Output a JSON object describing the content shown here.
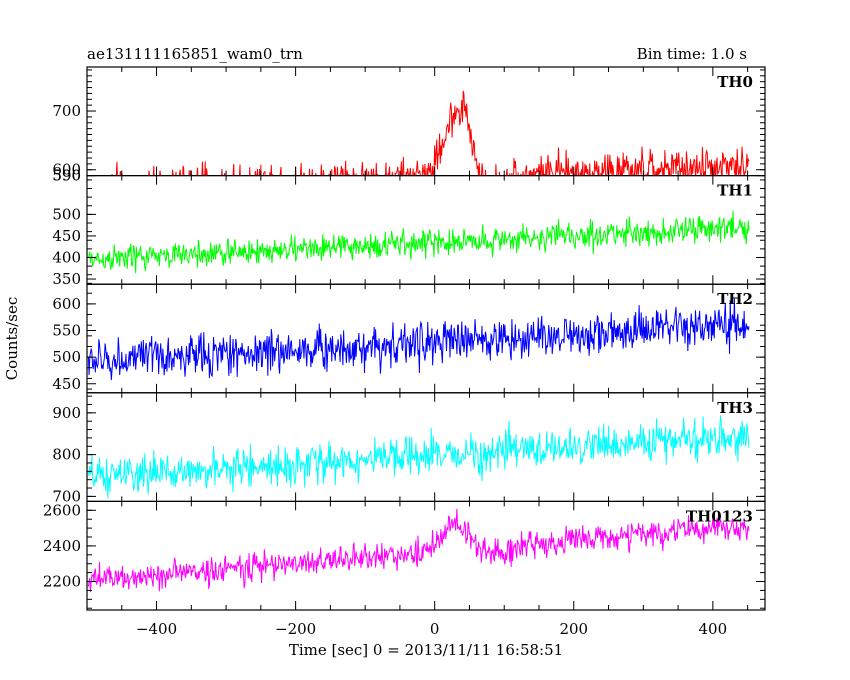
{
  "chart_data": {
    "type": "line",
    "title_left": "ae131111165851_wam0_trn",
    "title_right": "Bin time: 1.0 s",
    "xlabel": "Time [sec] 0 = 2013/11/11 16:58:51",
    "ylabel": "Counts/sec",
    "xlim": [
      -500,
      475
    ],
    "xticks": [
      -400,
      -200,
      0,
      200,
      400
    ],
    "x_start": -498,
    "x_end": 452,
    "x_step": 1,
    "panels": [
      {
        "name": "TH0",
        "color": "#ff0000",
        "ylim": [
          590,
          775
        ],
        "yticks": [
          700,
          600,
          590
        ],
        "base_start": 572,
        "base_end": 605,
        "noise": 22,
        "burst": [
          {
            "center": 32,
            "width": 18,
            "amp": 110
          },
          {
            "center": 45,
            "width": 5,
            "amp": 35
          }
        ],
        "dip": {
          "center": 80,
          "width": 25,
          "amp": -20
        }
      },
      {
        "name": "TH1",
        "color": "#00ff00",
        "ylim": [
          338,
          590
        ],
        "yticks": [
          500,
          450,
          400,
          350,
          590
        ],
        "base_start": 395,
        "base_end": 470,
        "noise": 22,
        "burst": [],
        "dip": null
      },
      {
        "name": "TH2",
        "color": "#0000ff",
        "ylim": [
          433,
          637
        ],
        "yticks": [
          600,
          550,
          500,
          450
        ],
        "base_start": 492,
        "base_end": 560,
        "noise": 28,
        "burst": [],
        "dip": null
      },
      {
        "name": "TH3",
        "color": "#00ffff",
        "ylim": [
          688,
          948
        ],
        "yticks": [
          900,
          800,
          700
        ],
        "base_start": 745,
        "base_end": 845,
        "noise": 32,
        "burst": [],
        "dip": null
      },
      {
        "name": "TH0123",
        "color": "#ff00ff",
        "ylim": [
          2040,
          2650
        ],
        "yticks": [
          2600,
          2400,
          2200
        ],
        "base_start": 2205,
        "base_end": 2515,
        "noise": 55,
        "burst": [
          {
            "center": 30,
            "width": 18,
            "amp": 150
          }
        ],
        "dip": {
          "center": 85,
          "width": 25,
          "amp": -40
        }
      }
    ]
  }
}
